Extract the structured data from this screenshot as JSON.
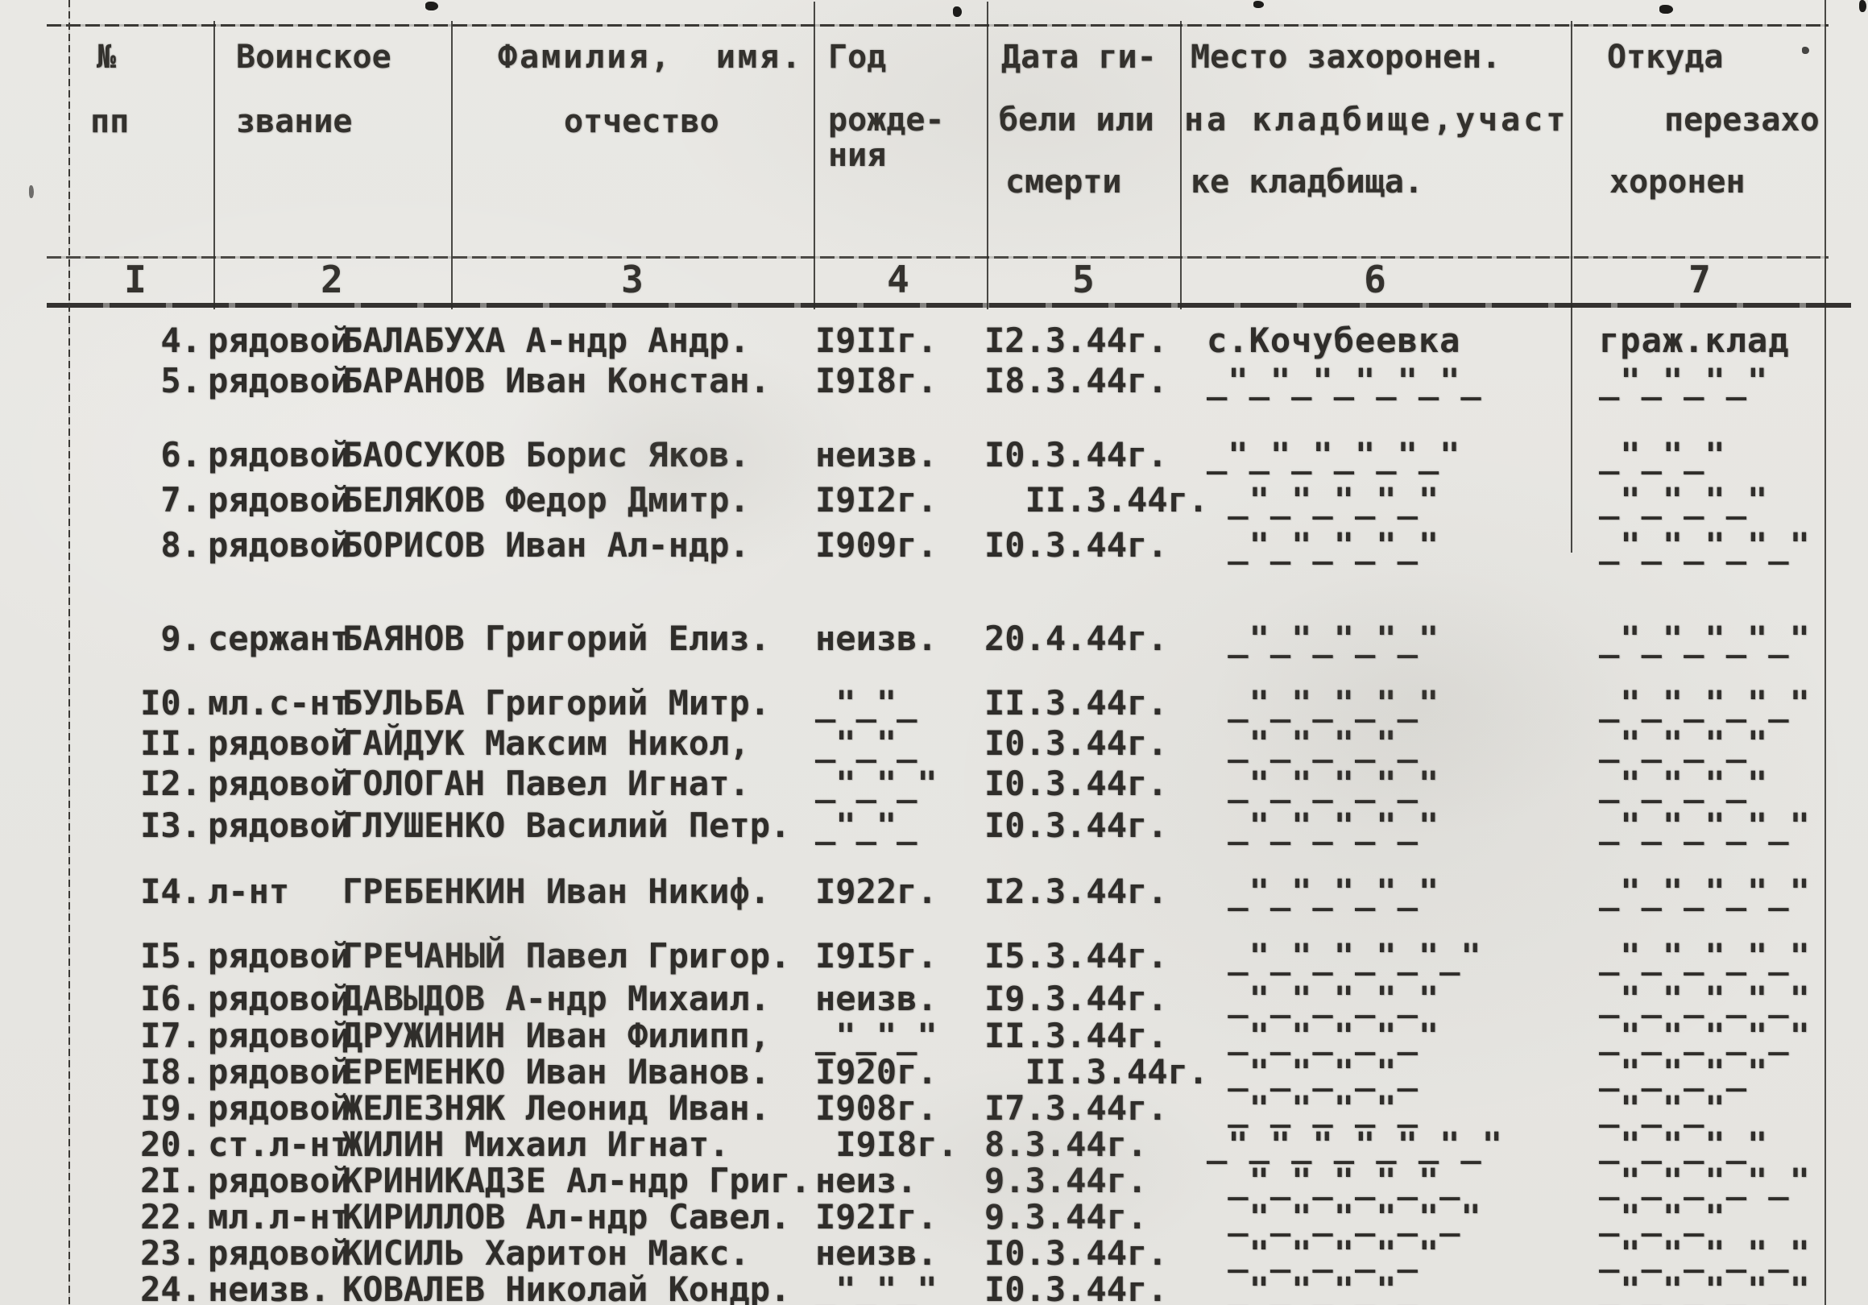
{
  "document_type": "burial-register-scan",
  "table": {
    "header": {
      "col1": [
        "№",
        "пп"
      ],
      "col2": [
        "Воинское",
        "звание"
      ],
      "col3": [
        "Фамилия,  имя.",
        "отчество"
      ],
      "col4": [
        "Год",
        "рожде-",
        "ния"
      ],
      "col5": [
        "Дата ги-",
        "бели или",
        "смерти"
      ],
      "col6": [
        "Место захоронен.",
        "на кладбище,участ",
        "ке кладбища."
      ],
      "col7": [
        "Откуда",
        "перезахо",
        "хоронен"
      ]
    },
    "col_numbers": [
      "I",
      "2",
      "3",
      "4",
      "5",
      "6",
      "7"
    ],
    "rows": [
      {
        "num": "4.",
        "rank": "рядовой",
        "name": "БАЛАБУХА А-ндр Андр.",
        "born": "I9IIг.",
        "died": "I2.3.44г.",
        "place": "с.Кочубеевка",
        "origin": "граж.клад"
      },
      {
        "num": "5.",
        "rank": "рядовой",
        "name": "БАРАНОВ Иван Констан.",
        "born": "I9I8г.",
        "died": "I8.3.44г.",
        "place": "_\"_\"_\"_\"_\"_\"_",
        "origin": "_\"_\"_\"_\""
      },
      {
        "num": "6.",
        "rank": "рядовой",
        "name": "БАОСУКОВ Борис Яков.",
        "born": "неизв.",
        "died": "I0.3.44г.",
        "place": "_\"_\"_\"_\"_\"_\"",
        "origin": "_\"_\"_\""
      },
      {
        "num": "7.",
        "rank": "рядовой",
        "name": "БЕЛЯКОВ Федор Дмитр.",
        "born": "I9I2г.",
        "died": "  II.3.44г.",
        "place": " _\"_\"_\"_\"_\"",
        "origin": "_\"_\"_\"_\""
      },
      {
        "num": "8.",
        "rank": "рядовой",
        "name": "БОРИСОВ Иван Ал-ндр.",
        "born": "I909г.",
        "died": "I0.3.44г.",
        "place": " _\"_\"_\"_\"_\"",
        "origin": "_\"_\"_\"_\"_\""
      },
      {
        "num": "9.",
        "rank": "сержант",
        "name": "БАЯНОВ Григорий Елиз.",
        "born": "неизв.",
        "died": "20.4.44г.",
        "place": " _\"_\"_\"_\"_\"",
        "origin": "_\"_\"_\"_\"_\""
      },
      {
        "num": "I0.",
        "rank": "мл.с-нт",
        "name": "БУЛЬБА Григорий Митр.",
        "born": "_\"_\"_",
        "died": "II.3.44г.",
        "place": " _\"_\"_\"_\"_\"",
        "origin": "_\"_\"_\"_\"_\""
      },
      {
        "num": "II.",
        "rank": "рядовой",
        "name": "ГАЙДУК Максим Никол,",
        "born": "_\"_\"_",
        "died": "I0.3.44г.",
        "place": " _\"_\"_\"_\"_",
        "origin": "_\"_\"_\"_\""
      },
      {
        "num": "I2.",
        "rank": "рядовой",
        "name": "ГОЛОГАН Павел Игнат.",
        "born": "_\"_\"_\"",
        "died": "I0.3.44г.",
        "place": " _\"_\"_\"_\"_\"",
        "origin": "_\"_\"_\"_\""
      },
      {
        "num": "I3.",
        "rank": "рядовой",
        "name": "ГЛУШЕНКО Василий Петр.",
        "born": "_\"_\"_",
        "died": "I0.3.44г.",
        "place": " _\"_\"_\"_\"_\"",
        "origin": "_\"_\"_\"_\"_\""
      },
      {
        "num": "I4.",
        "rank": "л-нт",
        "name": "ГРЕБЕНКИН Иван Никиф.",
        "born": "I922г.",
        "died": "I2.3.44г.",
        "place": " _\"_\"_\"_\"_\"",
        "origin": "_\"_\"_\"_\"_\""
      },
      {
        "num": "I5.",
        "rank": "рядовой",
        "name": "ГРЕЧАНЫЙ Павел Григор.",
        "born": "I9I5г.",
        "died": "I5.3.44г.",
        "place": " _\"_\"_\"_\"_\"_\"",
        "origin": "_\"_\"_\"_\"_\""
      },
      {
        "num": "I6.",
        "rank": "рядовой",
        "name": "ДАВЫДОВ А-ндр Михаил.",
        "born": "неизв.",
        "died": "I9.3.44г.",
        "place": " _\"_\"_\"_\"_\"",
        "origin": "_\"_\"_\"_\"_\""
      },
      {
        "num": "I7.",
        "rank": "рядовой",
        "name": "ДРУЖИНИН Иван Филипп,",
        "born": "_\"_\"_\"",
        "died": "II.3.44г.",
        "place": " _\"_\"_\"_\"_\"",
        "origin": "_\"_\"_\"_\"_\""
      },
      {
        "num": "I8.",
        "rank": "рядовой",
        "name": "ЕРЕМЕНКО Иван Иванов.",
        "born": "I920г.",
        "died": "  II.3.44г.",
        "place": " _\"_\"_\"_\"_",
        "origin": "_\"_\"_\"_\""
      },
      {
        "num": "I9.",
        "rank": "рядовой",
        "name": "ЖЕЛЕЗНЯК Леонид Иван.",
        "born": "I908г.",
        "died": "I7.3.44г.",
        "place": " _\"_\"_\"_\"_",
        "origin": "_\"_\"_\""
      },
      {
        "num": "20.",
        "rank": "ст.л-нт",
        "name": "ЖИЛИН Михаил Игнат.",
        "born": " I9I8г.",
        "died": "8.3.44г.",
        "place": "_\"_\"_\"_\"_\"_\"_\"",
        "origin": "_\"_\"_\"_\""
      },
      {
        "num": "2I.",
        "rank": "рядовой",
        "name": "КРИНИКАДЗЕ Ал-ндр Григ.",
        "born": "неиз.",
        "died": "9.3.44г.",
        "place": " _\"_\"_\"_\"_\"_",
        "origin": "_\"_\"_\"_\"_\""
      },
      {
        "num": "22.",
        "rank": "мл.л-нт",
        "name": "КИРИЛЛОВ Ал-ндр Савел.",
        "born": "I92Iг.",
        "died": "9.3.44г.",
        "place": " _\"_\"_\"_\"_\"_\"",
        "origin": "_\"_\"_\""
      },
      {
        "num": "23.",
        "rank": "рядовой",
        "name": "КИСИЛЬ Харитон Макс.",
        "born": "неизв.",
        "died": "I0.3.44г.",
        "place": " _\"_\"_\"_\"_\"",
        "origin": "_\"_\"_\"_\"_\""
      },
      {
        "num": "24.",
        "rank": "неизв.",
        "name": "КОВАЛЕВ Николай Кондр.",
        "born": "_\"_\"_\"",
        "died": "I0.3.44г.",
        "place": " _\"_\"_\"_\"_",
        "origin": "_\"_\"_\"_\"_\""
      }
    ]
  }
}
